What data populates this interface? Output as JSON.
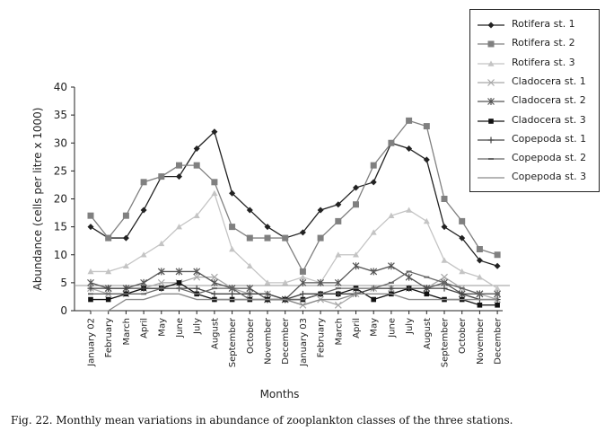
{
  "chart_data": {
    "type": "line",
    "xlabel": "Months",
    "ylabel": "Abundance (cells per litre x 1000)",
    "ylim": [
      0,
      40
    ],
    "yticks": [
      "0",
      "5",
      "10",
      "15",
      "20",
      "25",
      "30",
      "35",
      "40"
    ],
    "categories": [
      "January 02",
      "February",
      "March",
      "April",
      "May",
      "June",
      "July",
      "August",
      "September",
      "October",
      "November",
      "December",
      "January 03",
      "February",
      "March",
      "April",
      "May",
      "June",
      "July",
      "August",
      "September",
      "October",
      "November",
      "December"
    ],
    "legend_position": "top-right",
    "series": [
      {
        "name": "Rotifera st. 1",
        "color": "#222222",
        "marker": "diamond",
        "values": [
          15,
          13,
          13,
          18,
          24,
          24,
          29,
          32,
          21,
          18,
          15,
          13,
          14,
          18,
          19,
          22,
          23,
          30,
          29,
          27,
          15,
          13,
          9,
          8
        ]
      },
      {
        "name": "Rotifera st. 2",
        "color": "#808080",
        "marker": "square",
        "values": [
          17,
          13,
          17,
          23,
          24,
          26,
          26,
          23,
          15,
          13,
          13,
          13,
          7,
          13,
          16,
          19,
          26,
          30,
          34,
          33,
          20,
          16,
          11,
          10
        ]
      },
      {
        "name": "Rotifera st. 3",
        "color": "#c4c4c4",
        "marker": "triangle",
        "values": [
          7,
          7,
          8,
          10,
          12,
          15,
          17,
          21,
          11,
          8,
          5,
          5,
          6,
          5,
          10,
          10,
          14,
          17,
          18,
          16,
          9,
          7,
          6,
          4
        ]
      },
      {
        "name": "Cladocera st. 1",
        "color": "#a8a8a8",
        "marker": "x",
        "values": [
          4,
          3,
          3,
          4,
          5,
          5,
          6,
          6,
          4,
          3,
          3,
          2,
          1,
          2,
          1,
          3,
          4,
          4,
          4,
          4,
          6,
          4,
          3,
          2
        ]
      },
      {
        "name": "Cladocera st. 2",
        "color": "#555555",
        "marker": "star",
        "values": [
          5,
          4,
          4,
          5,
          7,
          7,
          7,
          5,
          4,
          4,
          2,
          2,
          5,
          5,
          5,
          8,
          7,
          8,
          6,
          4,
          5,
          3,
          3,
          3
        ]
      },
      {
        "name": "Cladocera st. 3",
        "color": "#111111",
        "marker": "smallsquare",
        "values": [
          2,
          2,
          3,
          4,
          4,
          5,
          3,
          2,
          2,
          2,
          2,
          2,
          2,
          3,
          3,
          4,
          2,
          3,
          4,
          3,
          2,
          2,
          1,
          1
        ]
      },
      {
        "name": "Copepoda st. 1",
        "color": "#444444",
        "marker": "plus",
        "values": [
          4,
          4,
          4,
          4,
          4,
          4,
          4,
          3,
          3,
          3,
          3,
          2,
          3,
          3,
          3,
          3,
          4,
          4,
          4,
          4,
          4,
          3,
          2,
          2
        ]
      },
      {
        "name": "Copepoda st. 2",
        "color": "#666666",
        "marker": "dash",
        "values": [
          3,
          3,
          3,
          3,
          4,
          4,
          3,
          4,
          4,
          2,
          2,
          2,
          2,
          3,
          4,
          4,
          4,
          5,
          7,
          6,
          5,
          4,
          3,
          3
        ]
      },
      {
        "name": "Copepoda st. 3",
        "color": "#8a8a8a",
        "marker": "none",
        "values": [
          0,
          0,
          2,
          2,
          3,
          3,
          2,
          2,
          2,
          2,
          2,
          2,
          1,
          2,
          2,
          3,
          3,
          3,
          2,
          2,
          2,
          2,
          2,
          2
        ]
      }
    ],
    "reference_line": {
      "value": 4.5,
      "color": "#999999"
    }
  },
  "caption": "Fig. 22. Monthly mean variations in abundance of zooplankton classes of the three stations."
}
